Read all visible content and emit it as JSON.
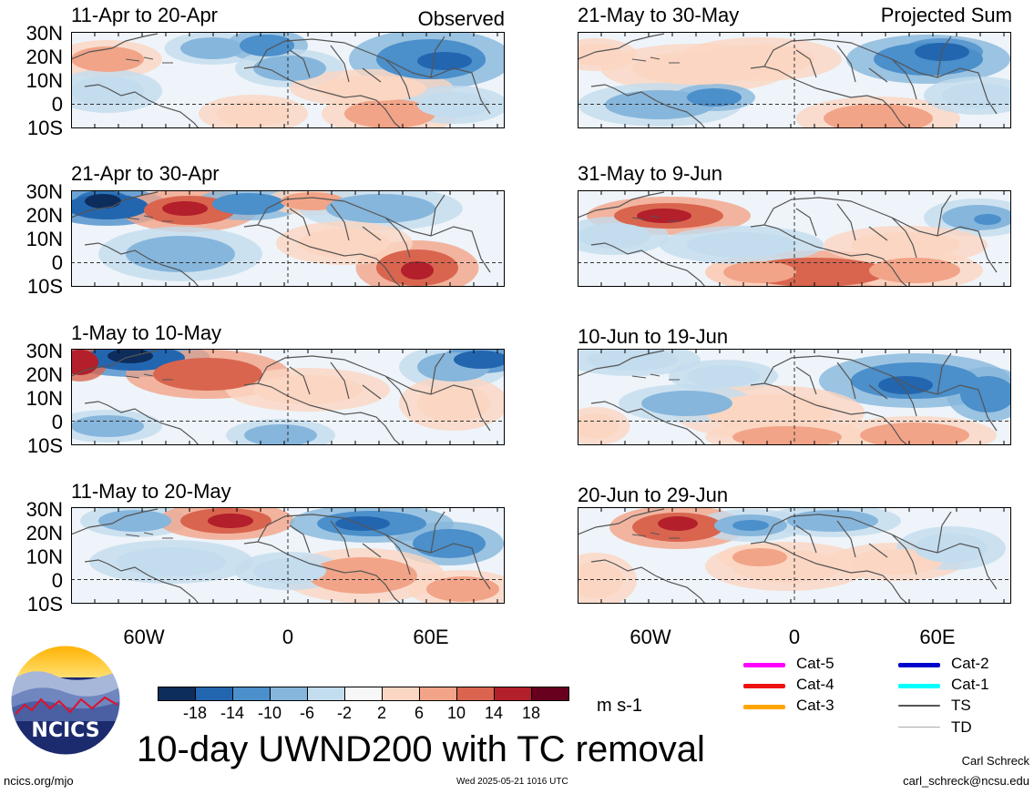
{
  "panels": [
    {
      "title": "11-Apr to 20-Apr",
      "tag": "Observed"
    },
    {
      "title": "21-Apr to 30-Apr",
      "tag": ""
    },
    {
      "title": "1-May to 10-May",
      "tag": ""
    },
    {
      "title": "11-May to 20-May",
      "tag": ""
    },
    {
      "title": "21-May to 30-May",
      "tag": "Projected Sum"
    },
    {
      "title": "31-May to 9-Jun",
      "tag": ""
    },
    {
      "title": "10-Jun to 19-Jun",
      "tag": ""
    },
    {
      "title": "20-Jun to 29-Jun",
      "tag": ""
    }
  ],
  "lat_labels": [
    "30N",
    "20N",
    "10N",
    "0",
    "10S"
  ],
  "lon_labels": [
    "60W",
    "0",
    "60E"
  ],
  "colorbar": {
    "labels": [
      "-18",
      "-14",
      "-10",
      "-6",
      "-2",
      "2",
      "6",
      "10",
      "14",
      "18"
    ],
    "colors": [
      "#0d2d5c",
      "#2366b0",
      "#4b8fcb",
      "#86b6dc",
      "#c3dcee",
      "#f7f7f7",
      "#fbd6c2",
      "#f2a488",
      "#d9654f",
      "#b31f2b",
      "#67001f"
    ],
    "units": "m s-1"
  },
  "tc_legend": [
    {
      "label": "Cat-5",
      "color": "#ff00ff"
    },
    {
      "label": "Cat-4",
      "color": "#ee1111"
    },
    {
      "label": "Cat-3",
      "color": "#ffa500"
    },
    {
      "label": "Cat-2",
      "color": "#0000cc"
    },
    {
      "label": "Cat-1",
      "color": "#00ffff"
    },
    {
      "label": "TS",
      "color": "#555555"
    },
    {
      "label": "TD",
      "color": "#aaaaaa"
    }
  ],
  "logo_text": "NCICS",
  "main_title": "10-day UWND200 with TC removal",
  "credit_name": "Carl Schreck",
  "credit_email": "carl_schreck@ncsu.edu",
  "website": "ncics.org/mjo",
  "timestamp": "Wed 2025-05-21 1016 UTC"
}
